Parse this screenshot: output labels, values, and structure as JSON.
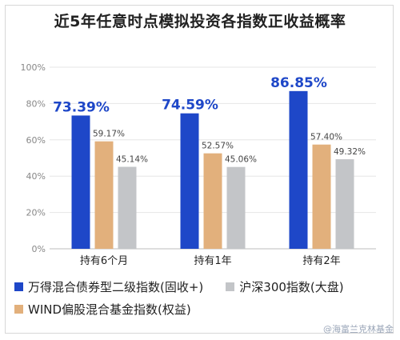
{
  "title": "近5年任意时点模拟投资各指数正收益概率",
  "watermark": "@海富兰克林基金",
  "chart_data": {
    "type": "bar",
    "categories": [
      "持有6个月",
      "持有1年",
      "持有2年"
    ],
    "series": [
      {
        "name": "万得混合债券型二级指数(固收+)",
        "values": [
          73.39,
          74.59,
          86.85
        ],
        "labels": [
          "73.39%",
          "74.59%",
          "86.85%"
        ],
        "color": "#1e47c8"
      },
      {
        "name": "WIND偏股混合基金指数(权益)",
        "values": [
          59.17,
          52.57,
          57.4
        ],
        "labels": [
          "59.17%",
          "52.57%",
          "57.40%"
        ],
        "color": "#e2b07c"
      },
      {
        "name": "沪深300指数(大盘)",
        "values": [
          45.14,
          45.06,
          49.32
        ],
        "labels": [
          "45.14%",
          "45.06%",
          "49.32%"
        ],
        "color": "#c3c5c8"
      }
    ],
    "yticks": [
      "0%",
      "20%",
      "40%",
      "60%",
      "80%",
      "100%"
    ],
    "ylim": [
      0,
      100
    ],
    "grid": true,
    "legend_position": "bottom"
  }
}
